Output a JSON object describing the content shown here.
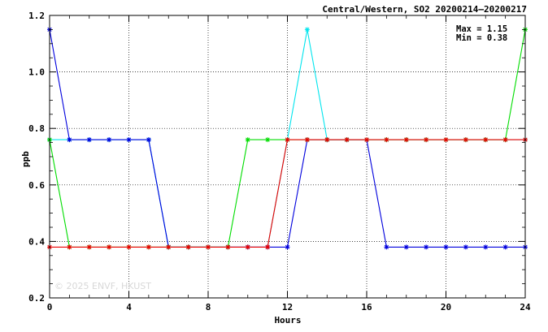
{
  "chart_data": {
    "type": "line",
    "title": "Central/Western, SO2 20200214–20200217",
    "xlabel": "Hours",
    "ylabel": "ppb",
    "xlim": [
      0,
      24
    ],
    "ylim": [
      0.2,
      1.2
    ],
    "xticks": [
      0,
      4,
      8,
      12,
      16,
      20,
      24
    ],
    "xtick_labels": [
      "0",
      "4",
      "8",
      "12",
      "16",
      "20",
      "24"
    ],
    "yticks": [
      0.2,
      0.4,
      0.6,
      0.8,
      1.0,
      1.2
    ],
    "ytick_labels": [
      "0.2",
      "0.4",
      "0.6",
      "0.8",
      "1.0",
      "1.2"
    ],
    "grid": "dotted, at major ticks",
    "legend": "none",
    "x": [
      0,
      1,
      2,
      3,
      4,
      5,
      6,
      7,
      8,
      9,
      10,
      11,
      12,
      13,
      14,
      15,
      16,
      17,
      18,
      19,
      20,
      21,
      22,
      23,
      24
    ],
    "series": [
      {
        "color": "#00e5ee",
        "values": [
          0.76,
          0.76,
          0.76,
          0.76,
          0.76,
          0.76,
          0.38,
          0.38,
          0.38,
          0.38,
          0.38,
          0.38,
          0.76,
          1.15,
          0.76,
          0.76,
          0.76,
          0.76,
          0.76,
          0.76,
          0.76,
          0.76,
          0.76,
          0.76,
          0.76
        ]
      },
      {
        "color": "#0000dd",
        "values": [
          1.15,
          0.76,
          0.76,
          0.76,
          0.76,
          0.76,
          0.38,
          0.38,
          0.38,
          0.38,
          0.38,
          0.38,
          0.38,
          0.76,
          0.76,
          0.76,
          0.76,
          0.38,
          0.38,
          0.38,
          0.38,
          0.38,
          0.38,
          0.38,
          0.38
        ]
      },
      {
        "color": "#00dd00",
        "values": [
          0.76,
          0.38,
          0.38,
          0.38,
          0.38,
          0.38,
          0.38,
          0.38,
          0.38,
          0.38,
          0.76,
          0.76,
          0.76,
          0.76,
          0.76,
          0.76,
          0.76,
          0.76,
          0.76,
          0.76,
          0.76,
          0.76,
          0.76,
          0.76,
          1.15
        ]
      },
      {
        "color": "#ee0000",
        "values": [
          0.38,
          0.38,
          0.38,
          0.38,
          0.38,
          0.38,
          0.38,
          0.38,
          0.38,
          0.38,
          0.38,
          0.38,
          0.76,
          0.76,
          0.76,
          0.76,
          0.76,
          0.76,
          0.76,
          0.76,
          0.76,
          0.76,
          0.76,
          0.76,
          0.76
        ]
      }
    ],
    "annotations": {
      "max": "Max = 1.15",
      "min": "Min = 0.38",
      "watermark": "© 2025  ENVF, HKUST"
    }
  }
}
